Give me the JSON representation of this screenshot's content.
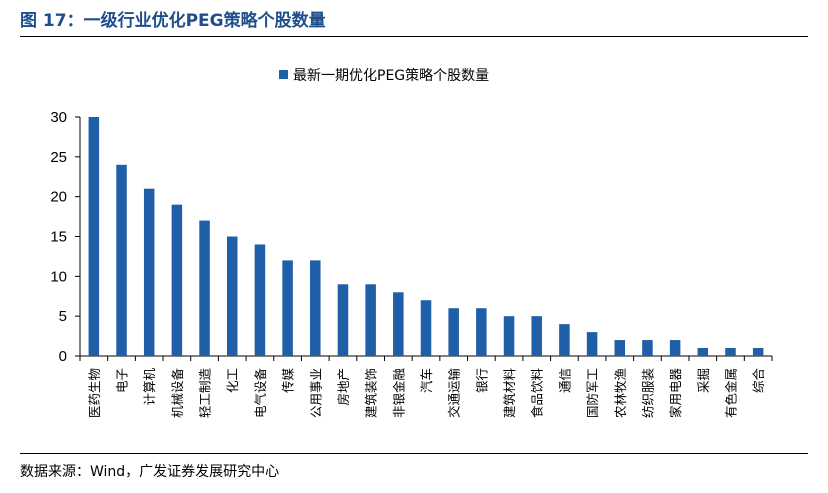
{
  "figure": {
    "title": "图 17：一级行业优化PEG策略个股数量",
    "source": "数据来源：Wind，广发证券发展研究中心"
  },
  "colors": {
    "bar": "#1f5fa8",
    "axis": "#000000",
    "title": "#1f4e8c"
  },
  "chart_data": {
    "type": "bar",
    "title": "",
    "xlabel": "",
    "ylabel": "",
    "ylim": [
      0,
      30
    ],
    "yticks": [
      0,
      5,
      10,
      15,
      20,
      25,
      30
    ],
    "grid": false,
    "legend_position": "top-center",
    "categories": [
      "医药生物",
      "电子",
      "计算机",
      "机械设备",
      "轻工制造",
      "化工",
      "电气设备",
      "传媒",
      "公用事业",
      "房地产",
      "建筑装饰",
      "非银金融",
      "汽车",
      "交通运输",
      "银行",
      "建筑材料",
      "食品饮料",
      "通信",
      "国防军工",
      "农林牧渔",
      "纺织服装",
      "家用电器",
      "采掘",
      "有色金属",
      "综合"
    ],
    "series": [
      {
        "name": "最新一期优化PEG策略个股数量",
        "values": [
          30,
          24,
          21,
          19,
          17,
          15,
          14,
          12,
          12,
          9,
          9,
          8,
          7,
          6,
          6,
          5,
          5,
          4,
          3,
          2,
          2,
          2,
          1,
          1,
          1
        ]
      }
    ]
  }
}
